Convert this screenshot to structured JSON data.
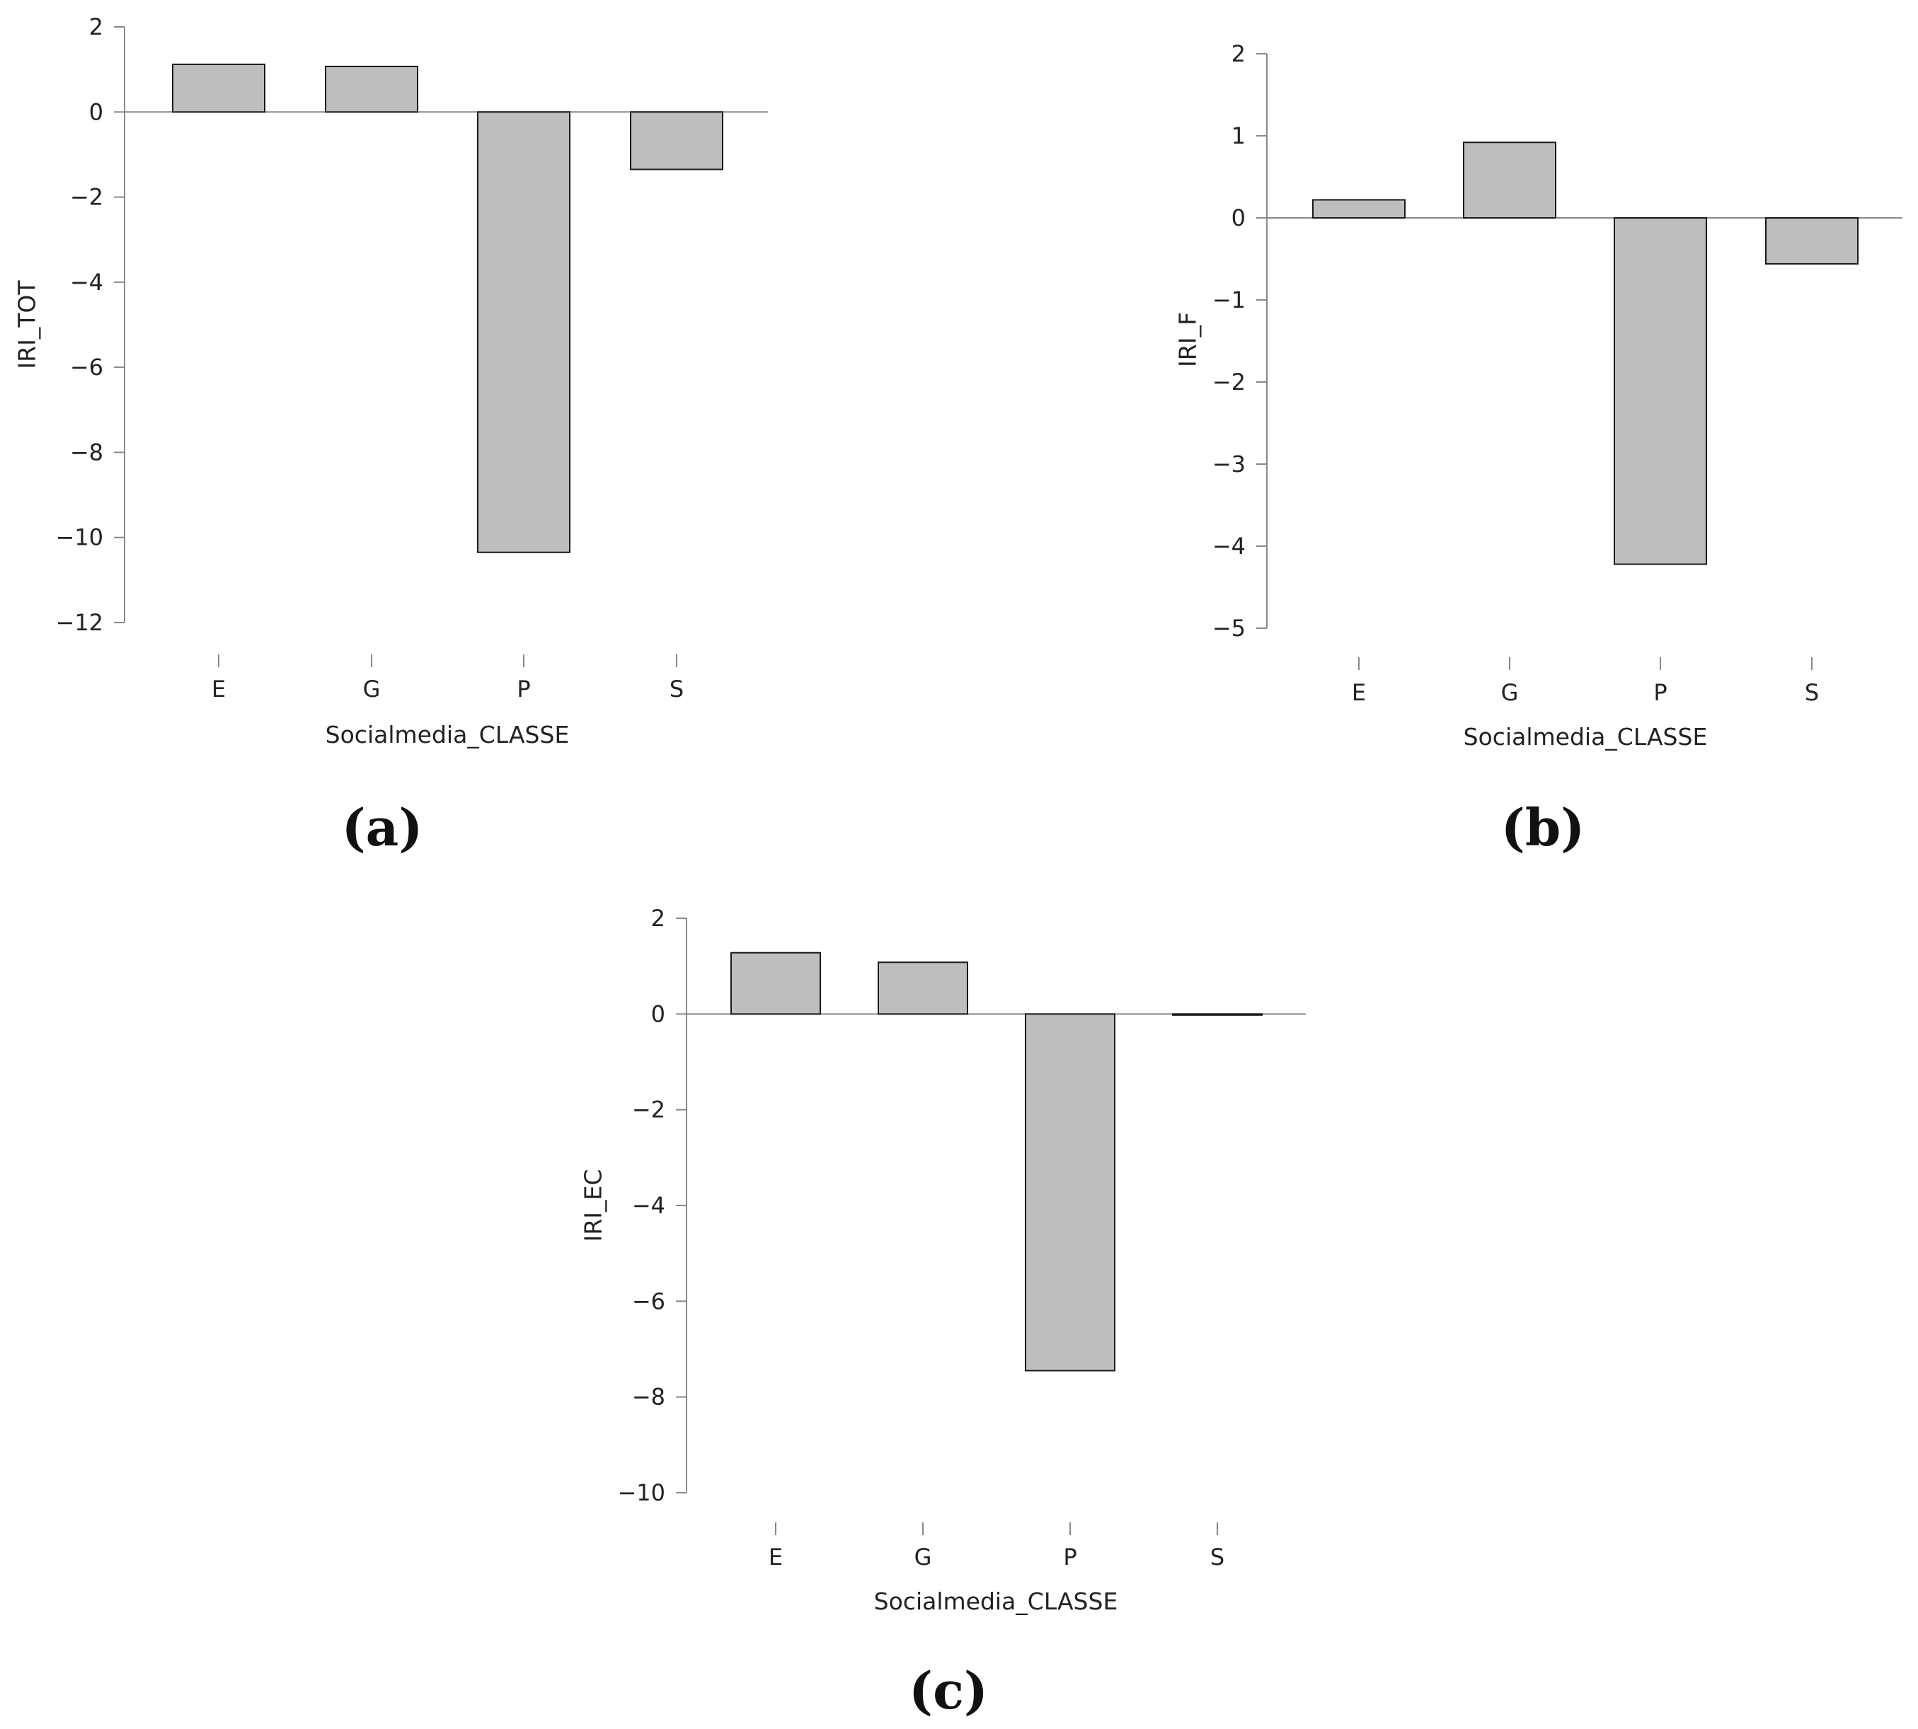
{
  "colors": {
    "bar_fill": "#bebebe",
    "bar_stroke": "#1a1a1a",
    "axis": "#888888",
    "text": "#222222"
  },
  "chart_data": [
    {
      "type": "bar",
      "caption": "(a)",
      "categories": [
        "E",
        "G",
        "P",
        "S"
      ],
      "values": [
        1.12,
        1.07,
        -10.35,
        -1.35
      ],
      "xlabel": "Socialmedia_CLASSE",
      "ylabel": "IRI_TOT",
      "ylim": [
        -12,
        2
      ],
      "yticks": [
        2,
        0,
        -2,
        -4,
        -6,
        -8,
        -10,
        -12
      ],
      "ytick_labels": [
        "2",
        "0",
        "−2",
        "−4",
        "−6",
        "−8",
        "−10",
        "−12"
      ],
      "grid": false,
      "legend": "none"
    },
    {
      "type": "bar",
      "caption": "(b)",
      "categories": [
        "E",
        "G",
        "P",
        "S"
      ],
      "values": [
        0.22,
        0.92,
        -4.22,
        -0.56
      ],
      "xlabel": "Socialmedia_CLASSE",
      "ylabel": "IRI_F",
      "ylim": [
        -5,
        2
      ],
      "yticks": [
        2,
        1,
        0,
        -1,
        -2,
        -3,
        -4,
        -5
      ],
      "ytick_labels": [
        "2",
        "1",
        "0",
        "−1",
        "−2",
        "−3",
        "−4",
        "−5"
      ],
      "grid": false,
      "legend": "none"
    },
    {
      "type": "bar",
      "caption": "(c)",
      "categories": [
        "E",
        "G",
        "P",
        "S"
      ],
      "values": [
        1.28,
        1.08,
        -7.45,
        -0.01
      ],
      "xlabel": "Socialmedia_CLASSE",
      "ylabel": "IRI_EC",
      "ylim": [
        -10,
        2
      ],
      "yticks": [
        2,
        0,
        -2,
        -4,
        -6,
        -8,
        -10
      ],
      "ytick_labels": [
        "2",
        "0",
        "−2",
        "−4",
        "−6",
        "−8",
        "−10"
      ],
      "grid": false,
      "legend": "none"
    }
  ]
}
